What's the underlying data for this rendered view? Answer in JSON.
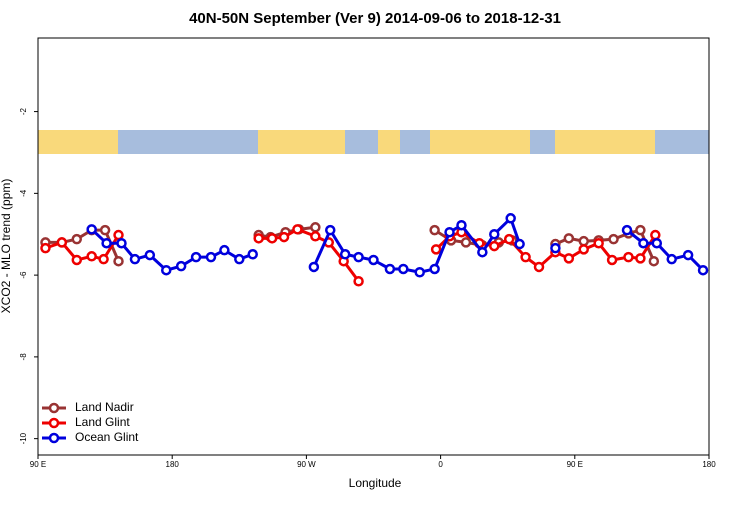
{
  "chart_data": {
    "type": "line",
    "title": "40N-50N September (Ver 9)   2014-09-06 to 2018-12-31",
    "xlabel": "Longitude",
    "ylabel": "XCO2 - MLO trend (ppm)",
    "xlim": [
      90,
      540
    ],
    "ylim": [
      -10.4,
      -0.2
    ],
    "xticks": [
      {
        "value": 90,
        "label": "90 E"
      },
      180,
      {
        "value": 270,
        "label": "90 W"
      },
      {
        "value": 360,
        "label": "0"
      },
      {
        "value": 450,
        "label": "90 E"
      },
      {
        "value": 540,
        "label": "180"
      }
    ],
    "yticks": [
      -2,
      -4,
      -6,
      -8,
      -10
    ],
    "legend": "bottom-left",
    "series": [
      {
        "name": "Land Nadir",
        "color": "#993333",
        "x": [
          95,
          106,
          116,
          126,
          135,
          144,
          null,
          238,
          246,
          256,
          265,
          276,
          null,
          356,
          367,
          377,
          388,
          399,
          408,
          null,
          437,
          446,
          456,
          466,
          476,
          486,
          494,
          503
        ],
        "values": [
          -5.2,
          -5.2,
          -5.12,
          -4.9,
          -4.9,
          -5.66,
          null,
          -5.02,
          -5.07,
          -4.95,
          -4.88,
          -4.83,
          null,
          -4.9,
          -5.15,
          -5.2,
          -5.27,
          -5.2,
          -5.15,
          null,
          -5.24,
          -5.1,
          -5.17,
          -5.15,
          -5.12,
          -4.98,
          -4.9,
          -5.66
        ]
      },
      {
        "name": "Land Glint",
        "color": "#ee0000",
        "x": [
          95,
          106,
          116,
          126,
          134,
          144,
          null,
          238,
          247,
          255,
          264,
          276,
          285,
          295,
          305,
          null,
          357,
          366,
          374,
          386,
          396,
          406,
          417,
          426,
          437,
          446,
          456,
          466,
          475,
          486,
          494,
          504
        ],
        "values": [
          -5.34,
          -5.2,
          -5.63,
          -5.54,
          -5.61,
          -5.02,
          null,
          -5.1,
          -5.1,
          -5.07,
          -4.88,
          -5.05,
          -5.2,
          -5.66,
          -6.15,
          null,
          -5.37,
          -5.05,
          -4.95,
          -5.22,
          -5.29,
          -5.12,
          -5.56,
          -5.8,
          -5.44,
          -5.59,
          -5.37,
          -5.22,
          -5.63,
          -5.56,
          -5.59,
          -5.02
        ]
      },
      {
        "name": "Ocean Glint",
        "color": "#0000dd",
        "x": [
          126,
          136,
          146,
          155,
          165,
          176,
          186,
          196,
          206,
          215,
          225,
          234,
          null,
          275,
          286,
          296,
          305,
          315,
          326,
          335,
          346,
          356,
          366,
          374,
          388,
          396,
          407,
          413,
          null,
          437,
          null,
          485,
          496,
          505,
          515,
          526,
          536
        ],
        "values": [
          -4.88,
          -5.22,
          -5.22,
          -5.61,
          -5.51,
          -5.88,
          -5.78,
          -5.56,
          -5.56,
          -5.39,
          -5.61,
          -5.49,
          null,
          -5.8,
          -4.9,
          -5.49,
          -5.56,
          -5.63,
          -5.85,
          -5.85,
          -5.93,
          -5.85,
          -4.95,
          -4.78,
          -5.44,
          -5.0,
          -4.61,
          -5.24,
          null,
          -5.34,
          null,
          -4.9,
          -5.22,
          -5.22,
          -5.61,
          -5.51,
          -5.88
        ]
      }
    ]
  }
}
